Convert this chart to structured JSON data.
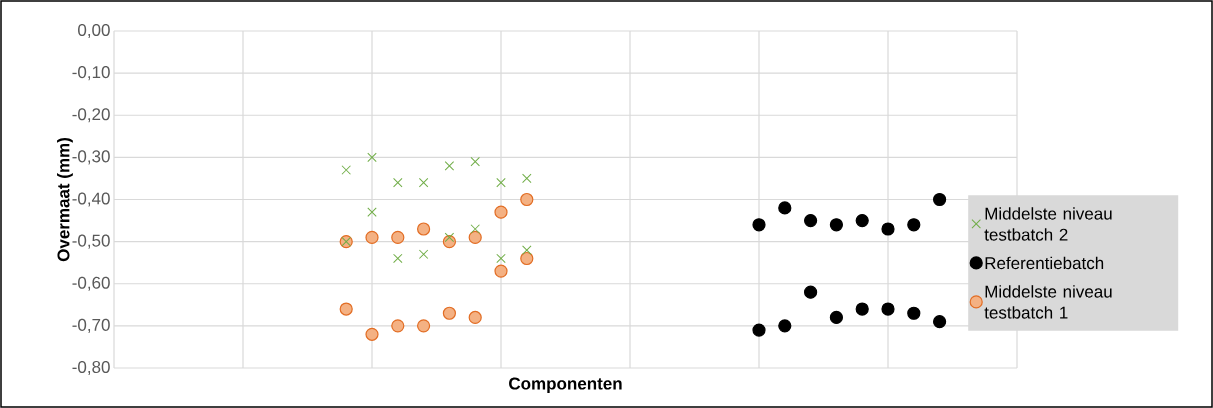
{
  "chart_data": {
    "type": "scatter",
    "xlabel": "Componenten",
    "ylabel": "Overmaat (mm)",
    "categories": [
      null,
      null,
      null,
      null,
      null,
      null,
      null,
      null,
      null,
      null,
      null,
      null,
      null,
      null,
      null,
      null,
      null,
      null,
      null,
      null,
      null,
      null,
      null,
      null,
      null,
      null,
      null,
      null,
      null,
      null,
      null,
      null,
      null,
      null,
      null,
      null
    ],
    "ylim": [
      -0.8,
      0
    ],
    "yticks": [
      {
        "value": -0.8,
        "label": "-0,80"
      },
      {
        "value": -0.7,
        "label": "-0,70"
      },
      {
        "value": -0.6,
        "label": "-0,60"
      },
      {
        "value": -0.5,
        "label": "-0,50"
      },
      {
        "value": -0.4,
        "label": "-0,40"
      },
      {
        "value": -0.3,
        "label": "-0,30"
      },
      {
        "value": -0.2,
        "label": "-0,20"
      },
      {
        "value": -0.1,
        "label": "-0,10"
      },
      {
        "value": 0,
        "label": "0,00"
      }
    ],
    "grid": true,
    "legend": "bottom right",
    "series": [
      {
        "name": "Middelste niveau testbatch 2",
        "color": "#70ad47",
        "marker": "cross",
        "values": [
          null,
          null,
          null,
          null,
          null,
          null,
          null,
          null,
          null,
          -0.33,
          -0.3,
          -0.36,
          -0.36,
          -0.32,
          -0.31,
          -0.36,
          -0.35,
          null,
          null,
          null,
          null,
          null,
          null,
          null,
          null,
          null,
          null,
          null,
          null,
          null,
          null,
          null,
          null,
          null,
          null,
          null
        ]
      },
      {
        "name": "Referentiebatch",
        "color": "#000000",
        "marker": "circle",
        "values": [
          null,
          null,
          null,
          null,
          null,
          null,
          null,
          null,
          null,
          null,
          null,
          null,
          null,
          null,
          null,
          null,
          null,
          null,
          null,
          null,
          null,
          null,
          null,
          null,
          null,
          -0.46,
          -0.42,
          -0.45,
          -0.46,
          -0.45,
          -0.47,
          -0.46,
          -0.4,
          null,
          null,
          null
        ]
      },
      {
        "color": "#000000",
        "marker": "circle",
        "values": [
          null,
          null,
          null,
          null,
          null,
          null,
          null,
          null,
          null,
          null,
          null,
          null,
          null,
          null,
          null,
          null,
          null,
          null,
          null,
          null,
          null,
          null,
          null,
          null,
          null,
          -0.71,
          -0.7,
          -0.62,
          -0.68,
          -0.66,
          -0.66,
          -0.67,
          -0.69,
          null,
          null,
          null
        ]
      },
      {
        "name": "Middelste niveau testbatch 1",
        "color": "#f4b183",
        "marker": "circle",
        "values": [
          null,
          null,
          null,
          null,
          null,
          null,
          null,
          null,
          null,
          -0.5,
          -0.49,
          -0.49,
          -0.47,
          -0.5,
          -0.49,
          -0.43,
          -0.4,
          null,
          null,
          null,
          null,
          null,
          null,
          null,
          null,
          null,
          null,
          null,
          null,
          null,
          null,
          null,
          null,
          null,
          null,
          null
        ]
      },
      {
        "color": "#f4b183",
        "marker": "circle",
        "values": [
          null,
          null,
          null,
          null,
          null,
          null,
          null,
          null,
          null,
          -0.66,
          -0.72,
          -0.7,
          -0.7,
          -0.67,
          -0.68,
          -0.57,
          -0.54,
          null,
          null,
          null,
          null,
          null,
          null,
          null,
          null,
          null,
          null,
          null,
          null,
          null,
          null,
          null,
          null,
          null,
          null,
          null
        ]
      },
      {
        "color": "#70ad47",
        "marker": "cross",
        "values": [
          null,
          null,
          null,
          null,
          null,
          null,
          null,
          null,
          null,
          -0.5,
          -0.43,
          -0.54,
          -0.53,
          -0.49,
          -0.47,
          -0.54,
          -0.52,
          null,
          null,
          null,
          null,
          null,
          null,
          null,
          null,
          null,
          null,
          null,
          null,
          null,
          null,
          null,
          null,
          null,
          null,
          null
        ]
      }
    ]
  }
}
